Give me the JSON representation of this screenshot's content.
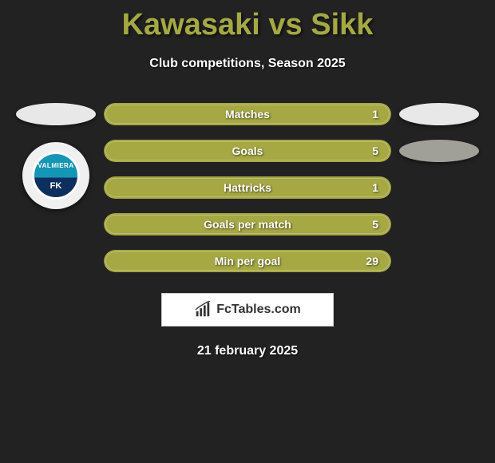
{
  "header": {
    "title": "Kawasaki vs Sikk",
    "subtitle": "Club competitions, Season 2025",
    "title_color": "#a5a843"
  },
  "stats": {
    "bar_color": "#a5a843",
    "left_colors": [
      "#e8e8e8",
      null,
      null,
      null,
      null
    ],
    "right_colors": [
      "#e8e8e8",
      "#a0a098",
      null,
      null,
      null
    ],
    "rows": [
      {
        "label": "Matches",
        "value": "1"
      },
      {
        "label": "Goals",
        "value": "5"
      },
      {
        "label": "Hattricks",
        "value": "1"
      },
      {
        "label": "Goals per match",
        "value": "5"
      },
      {
        "label": "Min per goal",
        "value": "29"
      }
    ]
  },
  "badge": {
    "name": "VALMIERA",
    "sub": "FK",
    "top_color": "#1596b5",
    "bottom_color": "#0d2f5e"
  },
  "brand": {
    "text": "FcTables.com"
  },
  "date": "21 february 2025"
}
